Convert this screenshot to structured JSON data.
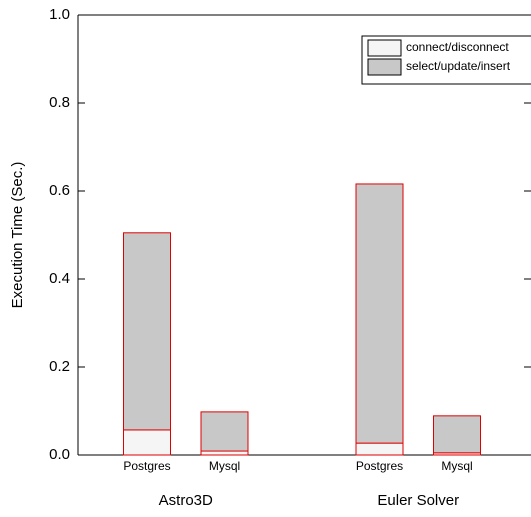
{
  "chart_data": {
    "type": "stacked-bar",
    "y_label": "Execution  Time (Sec.)",
    "categories": [
      "Postgres",
      "Mysql",
      null,
      "Postgres",
      "Mysql"
    ],
    "groups": [
      "Astro3D",
      "Euler Solver"
    ],
    "series": [
      {
        "name": "connect/disconnect",
        "color": "#f5f5f5",
        "values": [
          0.057,
          0.009,
          0,
          0.027,
          0.005
        ]
      },
      {
        "name": "select/update/insert",
        "color": "#c8c8c8",
        "values": [
          0.448,
          0.089,
          0,
          0.589,
          0.084
        ]
      }
    ],
    "edgecolor": "#e00000",
    "ylim": [
      0,
      1
    ],
    "yticks": [
      {
        "value": 0,
        "label": "0.0"
      },
      0.2,
      0.4,
      0.6,
      0.8,
      {
        "value": 1,
        "label": "1.0"
      }
    ],
    "legend": "upper right"
  }
}
